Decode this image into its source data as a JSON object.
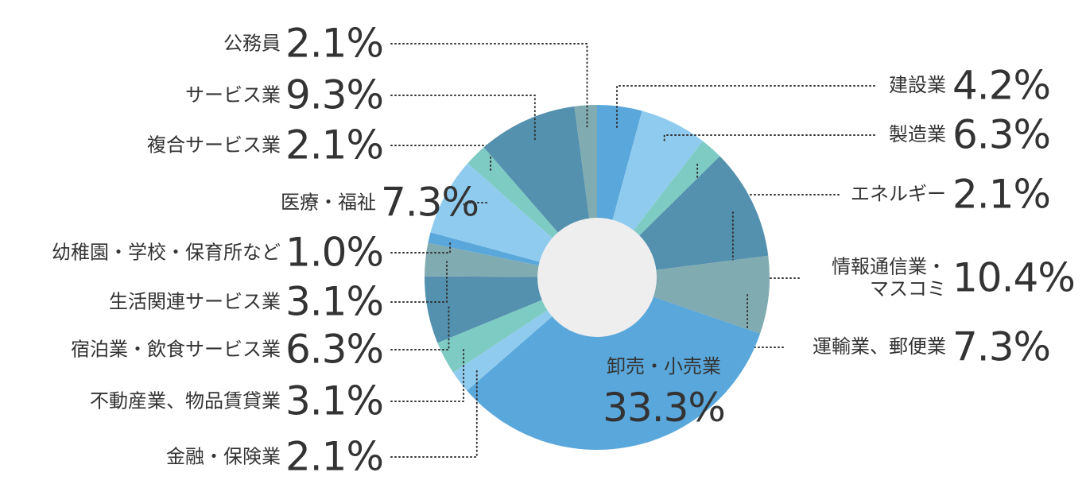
{
  "chart_data": {
    "type": "donut",
    "categories": [
      "建設業",
      "製造業",
      "エネルギー",
      "情報通信業・\nマスコミ",
      "運輸業、郵便業",
      "卸売・小売業",
      "金融・保険業",
      "不動産業、物品賃貸業",
      "宿泊業・飲食サービス業",
      "生活関連サービス業",
      "幼稚園・学校・保育所など",
      "医療・福祉",
      "複合サービス業",
      "サービス業",
      "公務員"
    ],
    "values": [
      4.2,
      6.3,
      2.1,
      10.4,
      7.3,
      33.3,
      2.1,
      3.1,
      6.3,
      3.1,
      1.0,
      7.3,
      2.1,
      9.3,
      2.1
    ],
    "value_labels": [
      "4.2%",
      "6.3%",
      "2.1%",
      "10.4%",
      "7.3%",
      "33.3%",
      "2.1%",
      "3.1%",
      "6.3%",
      "3.1%",
      "1.0%",
      "7.3%",
      "2.1%",
      "9.3%",
      "2.1%"
    ],
    "colors": [
      "#5aa7db",
      "#8fcbee",
      "#7ecbc4",
      "#5391ae",
      "#80abb0",
      "#5aa7db",
      "#8fcbee",
      "#7ecbc4",
      "#5391ae",
      "#80abb0",
      "#5aa7db",
      "#8fcbee",
      "#7ecbc4",
      "#5391ae",
      "#80abb0"
    ]
  }
}
